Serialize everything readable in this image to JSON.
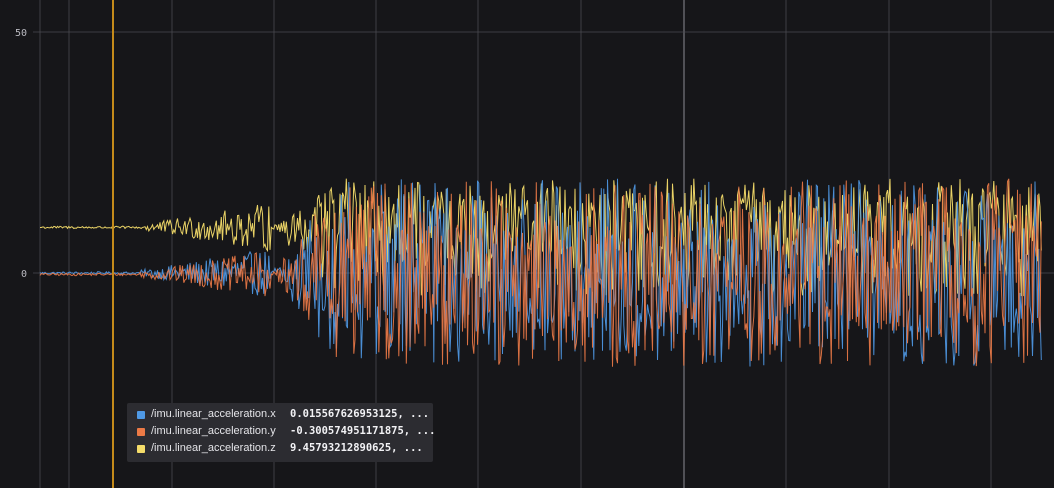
{
  "chart_data": {
    "type": "line",
    "title": "",
    "xlabel": "",
    "ylabel": "",
    "ylim": [
      -58,
      63
    ],
    "y_ticks": [
      "50",
      "0"
    ],
    "grid": true,
    "legend_placement": "bottom-left",
    "cursor": true,
    "series": [
      {
        "name": "/imu.linear_acceleration.x",
        "value": "0.015567626953125, ...",
        "color": "#4f99e5",
        "idle_level": 0,
        "active_min": -19.5,
        "active_max": 19.6,
        "activity_start_fraction": 0.23
      },
      {
        "name": "/imu.linear_acceleration.y",
        "value": "-0.300574951171875, ...",
        "color": "#ec7a46",
        "idle_level": -0.3,
        "active_min": -19.5,
        "active_max": 19.6,
        "activity_start_fraction": 0.23
      },
      {
        "name": "/imu.linear_acceleration.z",
        "value": "9.45793212890625, ...",
        "color": "#f5dd6a",
        "idle_level": 9.46,
        "active_min": -5,
        "active_max": 19.6,
        "activity_start_fraction": 0.23
      }
    ]
  },
  "legend": {
    "rows": [
      {
        "name": "/imu.linear_acceleration.x",
        "value": "0.015567626953125, ...",
        "color": "#4f99e5"
      },
      {
        "name": "/imu.linear_acceleration.y",
        "value": "-0.300574951171875, ...",
        "color": "#ec7a46"
      },
      {
        "name": "/imu.linear_acceleration.z",
        "value": "9.45793212890625, ...",
        "color": "#f5dd6a"
      }
    ]
  },
  "colors": {
    "background": "#161619",
    "grid": "#4a4a50",
    "cursor": "#c48a1a"
  }
}
